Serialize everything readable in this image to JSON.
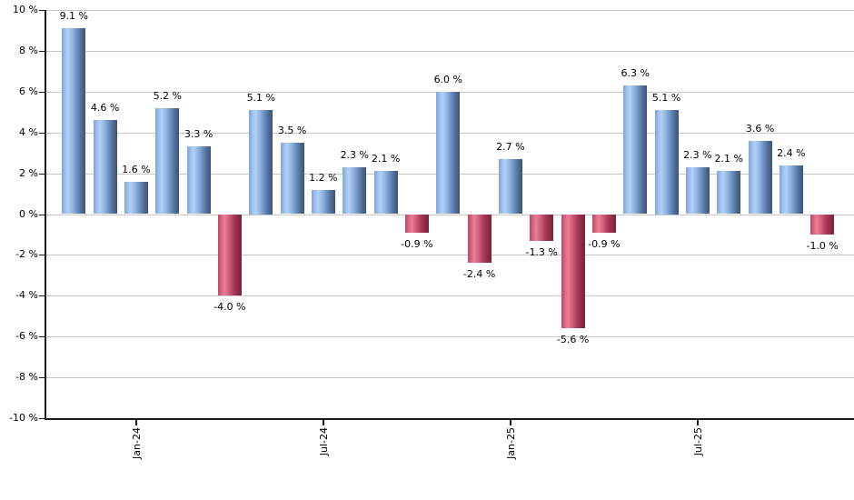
{
  "chart_data": {
    "type": "bar",
    "title": "",
    "description": "Monthly percentage returns bar chart",
    "values": [
      9.1,
      4.6,
      1.6,
      5.2,
      3.3,
      -4.0,
      5.1,
      3.5,
      1.2,
      2.3,
      2.1,
      -0.9,
      6.0,
      -2.4,
      2.7,
      -1.3,
      -5.6,
      -0.9,
      6.3,
      5.1,
      2.3,
      2.1,
      3.6,
      2.4,
      -1.0
    ],
    "bar_labels": [
      "9.1 %",
      "4.6 %",
      "1.6 %",
      "5.2 %",
      "3.3 %",
      "-4.0 %",
      "5.1 %",
      "3.5 %",
      "1.2 %",
      "2.3 %",
      "2.1 %",
      "-0.9 %",
      "6.0 %",
      "-2.4 %",
      "2.7 %",
      "-1.3 %",
      "-5.6 %",
      "-0.9 %",
      "6.3 %",
      "5.1 %",
      "2.3 %",
      "2.1 %",
      "3.6 %",
      "2.4 %",
      "-1.0 %"
    ],
    "x_ticks": [
      {
        "bar_index": 2,
        "label": "Jan-24"
      },
      {
        "bar_index": 8,
        "label": "Jul-24"
      },
      {
        "bar_index": 14,
        "label": "Jan-25"
      },
      {
        "bar_index": 20,
        "label": "Jul-25"
      }
    ],
    "y_ticks": [
      {
        "value": 10,
        "label": "10 %"
      },
      {
        "value": 8,
        "label": "8 %"
      },
      {
        "value": 6,
        "label": "6 %"
      },
      {
        "value": 4,
        "label": "4 %"
      },
      {
        "value": 2,
        "label": "2 %"
      },
      {
        "value": 0,
        "label": "0 %"
      },
      {
        "value": -2,
        "label": "-2 %"
      },
      {
        "value": -4,
        "label": "-4 %"
      },
      {
        "value": -6,
        "label": "-6 %"
      },
      {
        "value": -8,
        "label": "-8 %"
      },
      {
        "value": -10,
        "label": "-10 %"
      }
    ],
    "ylim": [
      -10,
      10
    ],
    "grid": true,
    "legend": false,
    "colors": {
      "background": "#ffffff",
      "gridline": "#c8c8c8",
      "axis": "#1a1a1a",
      "label_text": "#000000",
      "positive_stops": [
        {
          "color": "#7ea4da",
          "pos": 0
        },
        {
          "color": "#a9c9f3",
          "pos": 20
        },
        {
          "color": "#b1cff7",
          "pos": 28
        },
        {
          "color": "#8db0e0",
          "pos": 48
        },
        {
          "color": "#6a8cba",
          "pos": 66
        },
        {
          "color": "#4f6b96",
          "pos": 84
        },
        {
          "color": "#3d5275",
          "pos": 100
        }
      ],
      "negative_stops": [
        {
          "color": "#bd4766",
          "pos": 0
        },
        {
          "color": "#e2718c",
          "pos": 20
        },
        {
          "color": "#e87e96",
          "pos": 28
        },
        {
          "color": "#cd5a78",
          "pos": 48
        },
        {
          "color": "#ab3a5b",
          "pos": 66
        },
        {
          "color": "#8e2c47",
          "pos": 84
        },
        {
          "color": "#7c2339",
          "pos": 100
        }
      ]
    }
  }
}
